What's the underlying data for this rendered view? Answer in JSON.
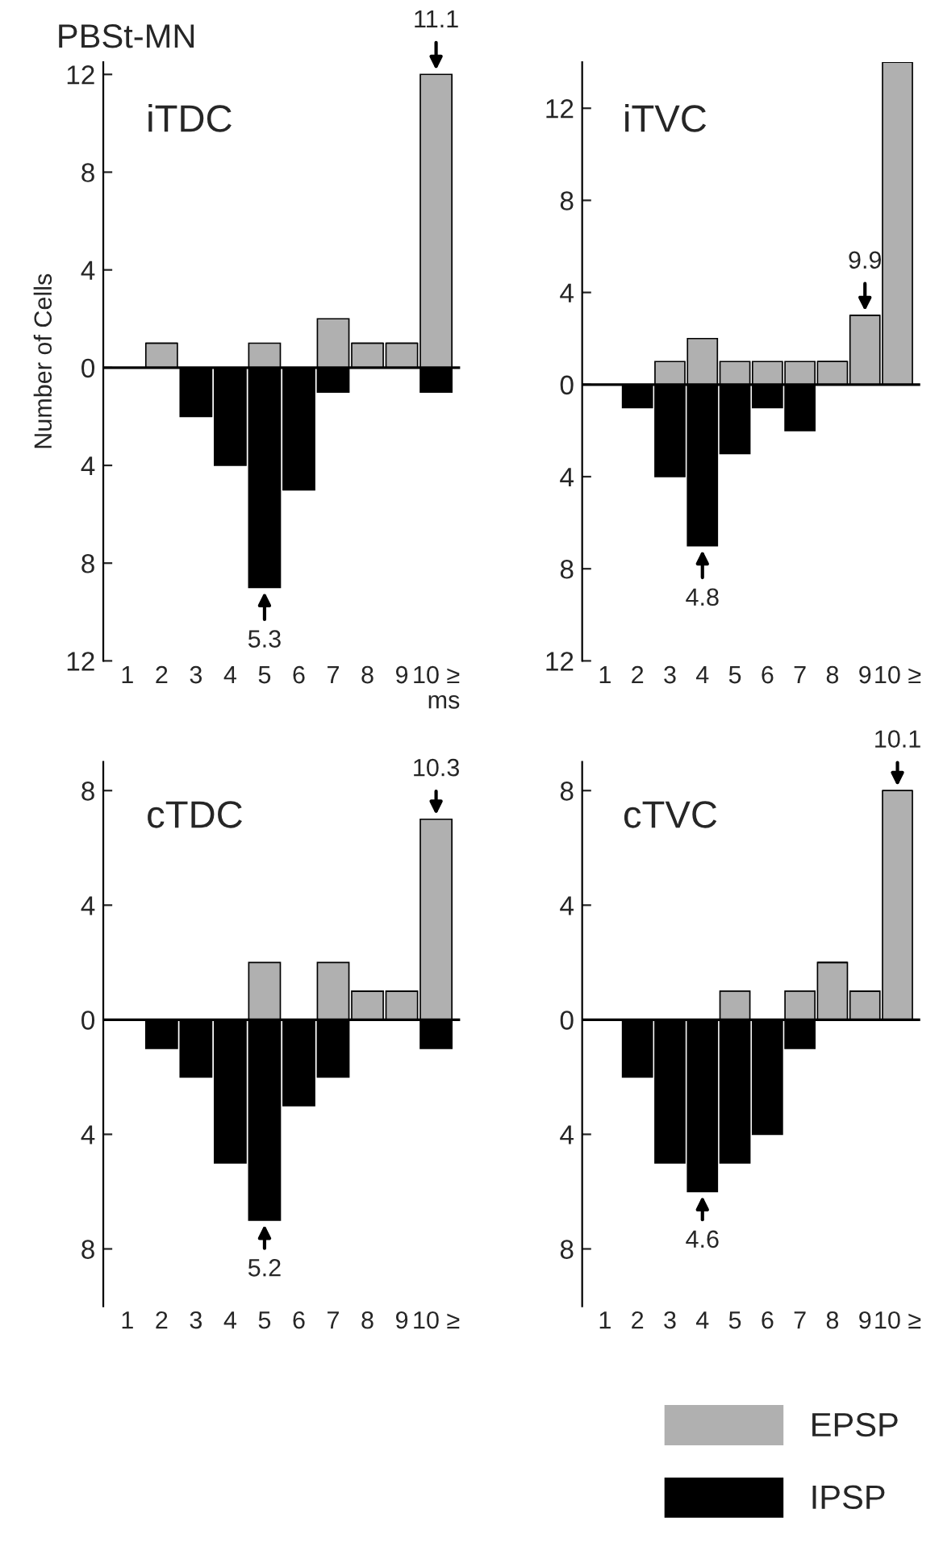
{
  "chart_data": [
    {
      "type": "bar",
      "title": "iTDC",
      "ylabel": "Number of Cells",
      "xlabel": "ms",
      "legend": "bottom right",
      "stacked": true,
      "categories": [
        "1",
        "2",
        "3",
        "4",
        "5",
        "6",
        "7",
        "8",
        "9",
        "10 ≥"
      ],
      "series": [
        {
          "name": "EPSP",
          "color": "#b0b0b0",
          "values": [
            0,
            1,
            0,
            0,
            1,
            0,
            2,
            1,
            1,
            12
          ]
        },
        {
          "name": "IPSP",
          "color": "#000000",
          "values": [
            0,
            0,
            -2,
            -4,
            -9,
            -5,
            -1,
            0,
            0,
            -1
          ]
        }
      ],
      "ylim": [
        -12,
        12.5
      ],
      "yticks": [
        {
          "value": -12,
          "label": "12"
        },
        {
          "value": -8,
          "label": "8"
        },
        {
          "value": -4,
          "label": "4"
        },
        0,
        4,
        8,
        12
      ],
      "annotations": [
        "PBSt-MN",
        {
          "text": "11.1",
          "x": "10 ≥",
          "y": 12
        },
        {
          "text": "5.3",
          "x": "5",
          "y": -9
        }
      ]
    },
    {
      "type": "bar",
      "title": "iTVC",
      "stacked": true,
      "categories": [
        "1",
        "2",
        "3",
        "4",
        "5",
        "6",
        "7",
        "8",
        "9",
        "10 ≥"
      ],
      "series": [
        {
          "color": "#b0b0b0",
          "values": [
            0,
            0,
            1,
            2,
            1,
            1,
            1,
            1,
            3,
            14
          ]
        },
        {
          "color": "#000000",
          "values": [
            0,
            -1,
            -4,
            -7,
            -3,
            -1,
            -2,
            0,
            0,
            0
          ]
        }
      ],
      "ylim": [
        -12,
        14
      ],
      "yticks": [
        {
          "value": -12,
          "label": "12"
        },
        {
          "value": -8,
          "label": "8"
        },
        {
          "value": -4,
          "label": "4"
        },
        0,
        4,
        8,
        12
      ],
      "annotations": [
        {
          "text": "9.9",
          "x": "9",
          "y": 3
        },
        {
          "text": "4.8",
          "x": "4",
          "y": -7
        }
      ]
    },
    {
      "type": "bar",
      "title": "cTDC",
      "stacked": true,
      "categories": [
        "1",
        "2",
        "3",
        "4",
        "5",
        "6",
        "7",
        "8",
        "9",
        "10 ≥"
      ],
      "series": [
        {
          "color": "#b0b0b0",
          "values": [
            0,
            0,
            0,
            0,
            2,
            0,
            2,
            1,
            1,
            7
          ]
        },
        {
          "color": "#000000",
          "values": [
            0,
            -1,
            -2,
            -5,
            -7,
            -3,
            -2,
            0,
            0,
            -1
          ]
        }
      ],
      "ylim": [
        -10,
        9
      ],
      "yticks": [
        {
          "value": -8,
          "label": "8"
        },
        {
          "value": -4,
          "label": "4"
        },
        0,
        4,
        8
      ],
      "annotations": [
        {
          "text": "10.3",
          "x": "10 ≥",
          "y": 7
        },
        {
          "text": "5.2",
          "x": "5",
          "y": -7
        }
      ]
    },
    {
      "type": "bar",
      "title": "cTVC",
      "stacked": true,
      "categories": [
        "1",
        "2",
        "3",
        "4",
        "5",
        "6",
        "7",
        "8",
        "9",
        "10 ≥"
      ],
      "series": [
        {
          "color": "#b0b0b0",
          "values": [
            0,
            0,
            0,
            0,
            1,
            0,
            1,
            2,
            1,
            8
          ]
        },
        {
          "color": "#000000",
          "values": [
            0,
            -2,
            -5,
            -6,
            -5,
            -4,
            -1,
            0,
            0,
            0
          ]
        }
      ],
      "ylim": [
        -10,
        9
      ],
      "yticks": [
        {
          "value": -8,
          "label": "8"
        },
        {
          "value": -4,
          "label": "4"
        },
        0,
        4,
        8
      ],
      "annotations": [
        {
          "text": "10.1",
          "x": "10 ≥",
          "y": 8
        },
        {
          "text": "4.6",
          "x": "4",
          "y": -6
        }
      ]
    }
  ]
}
